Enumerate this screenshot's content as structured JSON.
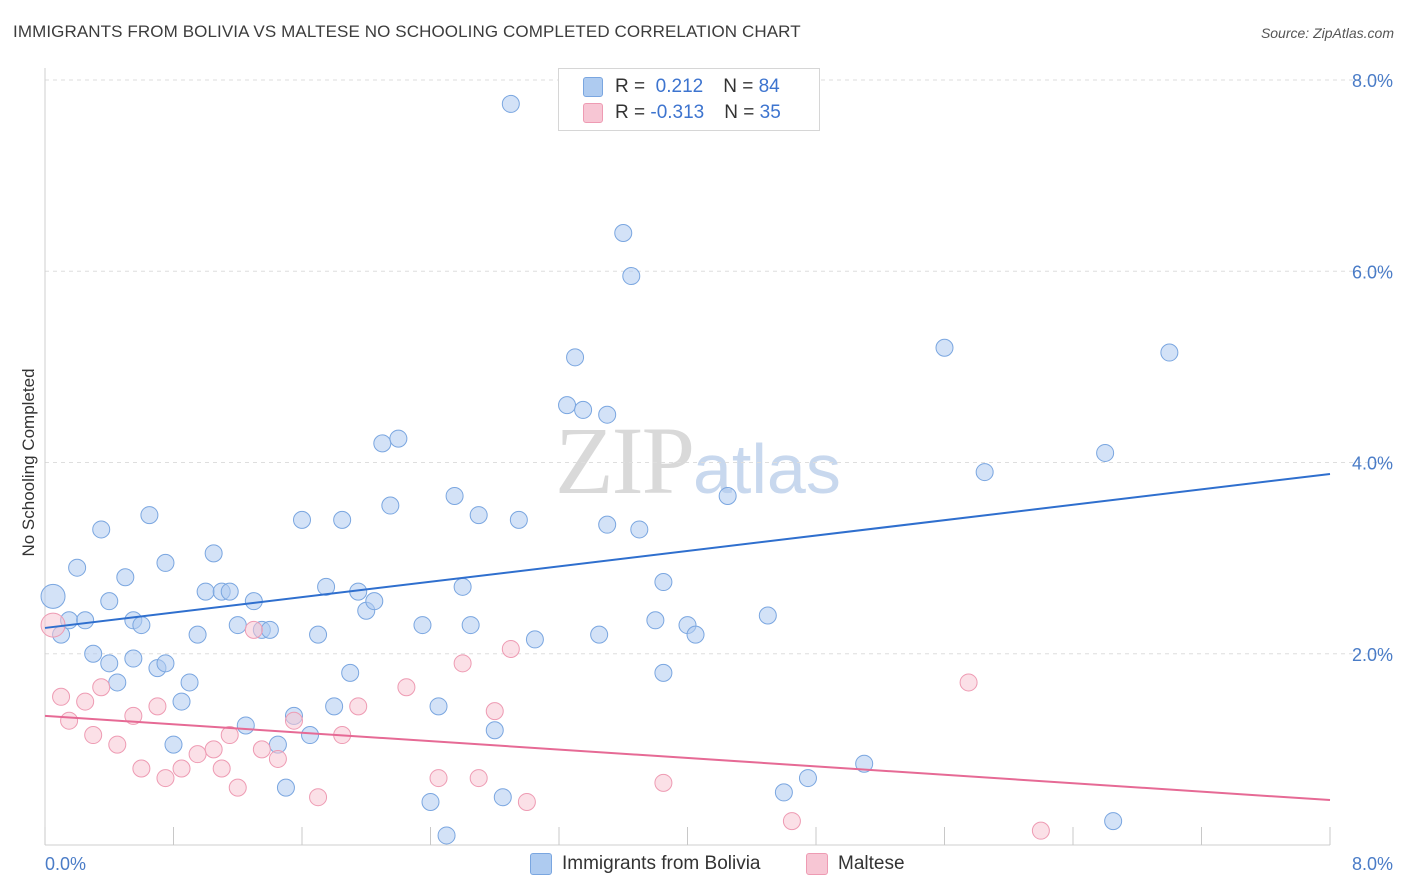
{
  "header": {
    "title": "IMMIGRANTS FROM BOLIVIA VS MALTESE NO SCHOOLING COMPLETED CORRELATION CHART",
    "source": "Source: ZipAtlas.com"
  },
  "watermark": {
    "zip": "ZIP",
    "atlas": "atlas"
  },
  "legend": {
    "rows": [
      {
        "r_label": "R = ",
        "r_value": " 0.212",
        "n_label": "N = ",
        "n_value": "84",
        "color": "#aecbf0",
        "stroke": "#7aa6e0"
      },
      {
        "r_label": "R = ",
        "r_value": "-0.313",
        "n_label": "N = ",
        "n_value": "35",
        "color": "#f7c6d4",
        "stroke": "#ee9bb3"
      }
    ]
  },
  "bottom_legend": [
    {
      "label": "Immigrants from Bolivia",
      "color": "#aecbf0",
      "stroke": "#7aa6e0"
    },
    {
      "label": "Maltese",
      "color": "#f7c6d4",
      "stroke": "#ee9bb3"
    }
  ],
  "chart_data": {
    "type": "scatter",
    "title": "IMMIGRANTS FROM BOLIVIA VS MALTESE NO SCHOOLING COMPLETED CORRELATION CHART",
    "xlabel": "",
    "ylabel": "No Schooling Completed",
    "xlim": [
      0,
      8
    ],
    "ylim": [
      0,
      8
    ],
    "x_tick_labels": [
      "0.0%",
      "8.0%"
    ],
    "y_ticks": [
      2,
      4,
      6,
      8
    ],
    "y_tick_labels": [
      "2.0%",
      "4.0%",
      "6.0%",
      "8.0%"
    ],
    "grid": true,
    "legend_position": "top-center",
    "series": [
      {
        "name": "Immigrants from Bolivia",
        "color": "#aecbf0",
        "stroke": "#7aa6e0",
        "trend": {
          "x": [
            0,
            8
          ],
          "y": [
            2.27,
            3.88
          ],
          "color": "#2f6fce"
        },
        "points": [
          [
            0.05,
            2.6
          ],
          [
            0.1,
            2.2
          ],
          [
            0.15,
            2.35
          ],
          [
            0.2,
            2.9
          ],
          [
            0.25,
            2.35
          ],
          [
            0.3,
            2.0
          ],
          [
            0.35,
            3.3
          ],
          [
            0.4,
            2.55
          ],
          [
            0.4,
            1.9
          ],
          [
            0.45,
            1.7
          ],
          [
            0.5,
            2.8
          ],
          [
            0.55,
            2.35
          ],
          [
            0.55,
            1.95
          ],
          [
            0.6,
            2.3
          ],
          [
            0.65,
            3.45
          ],
          [
            0.7,
            1.85
          ],
          [
            0.75,
            2.95
          ],
          [
            0.75,
            1.9
          ],
          [
            0.8,
            1.05
          ],
          [
            0.85,
            1.5
          ],
          [
            0.9,
            1.7
          ],
          [
            0.95,
            2.2
          ],
          [
            1.0,
            2.65
          ],
          [
            1.05,
            3.05
          ],
          [
            1.1,
            2.65
          ],
          [
            1.15,
            2.65
          ],
          [
            1.2,
            2.3
          ],
          [
            1.25,
            1.25
          ],
          [
            1.3,
            2.55
          ],
          [
            1.35,
            2.25
          ],
          [
            1.4,
            2.25
          ],
          [
            1.45,
            1.05
          ],
          [
            1.5,
            0.6
          ],
          [
            1.55,
            1.35
          ],
          [
            1.6,
            3.4
          ],
          [
            1.65,
            1.15
          ],
          [
            1.7,
            2.2
          ],
          [
            1.75,
            2.7
          ],
          [
            1.8,
            1.45
          ],
          [
            1.85,
            3.4
          ],
          [
            1.9,
            1.8
          ],
          [
            1.95,
            2.65
          ],
          [
            2.0,
            2.45
          ],
          [
            2.05,
            2.55
          ],
          [
            2.1,
            4.2
          ],
          [
            2.15,
            3.55
          ],
          [
            2.2,
            4.25
          ],
          [
            2.35,
            2.3
          ],
          [
            2.4,
            0.45
          ],
          [
            2.45,
            1.45
          ],
          [
            2.5,
            0.1
          ],
          [
            2.55,
            3.65
          ],
          [
            2.6,
            2.7
          ],
          [
            2.65,
            2.3
          ],
          [
            2.7,
            3.45
          ],
          [
            2.8,
            1.2
          ],
          [
            2.85,
            0.5
          ],
          [
            2.9,
            7.75
          ],
          [
            2.95,
            3.4
          ],
          [
            3.05,
            2.15
          ],
          [
            3.25,
            4.6
          ],
          [
            3.3,
            5.1
          ],
          [
            3.35,
            4.55
          ],
          [
            3.45,
            2.2
          ],
          [
            3.5,
            4.5
          ],
          [
            3.5,
            3.35
          ],
          [
            3.6,
            6.4
          ],
          [
            3.65,
            5.95
          ],
          [
            3.7,
            3.3
          ],
          [
            3.8,
            2.35
          ],
          [
            3.85,
            2.75
          ],
          [
            3.85,
            1.8
          ],
          [
            4.0,
            2.3
          ],
          [
            4.05,
            2.2
          ],
          [
            4.25,
            3.65
          ],
          [
            4.5,
            2.4
          ],
          [
            4.6,
            0.55
          ],
          [
            4.75,
            0.7
          ],
          [
            5.1,
            0.85
          ],
          [
            5.6,
            5.2
          ],
          [
            5.85,
            3.9
          ],
          [
            6.6,
            4.1
          ],
          [
            6.65,
            0.25
          ],
          [
            7.0,
            5.15
          ]
        ]
      },
      {
        "name": "Maltese",
        "color": "#f7c6d4",
        "stroke": "#ee9bb3",
        "trend": {
          "x": [
            0,
            8
          ],
          "y": [
            1.35,
            0.47
          ],
          "color": "#e66a95"
        },
        "points": [
          [
            0.05,
            2.3
          ],
          [
            0.1,
            1.55
          ],
          [
            0.15,
            1.3
          ],
          [
            0.25,
            1.5
          ],
          [
            0.3,
            1.15
          ],
          [
            0.35,
            1.65
          ],
          [
            0.45,
            1.05
          ],
          [
            0.55,
            1.35
          ],
          [
            0.6,
            0.8
          ],
          [
            0.7,
            1.45
          ],
          [
            0.75,
            0.7
          ],
          [
            0.85,
            0.8
          ],
          [
            0.95,
            0.95
          ],
          [
            1.05,
            1.0
          ],
          [
            1.1,
            0.8
          ],
          [
            1.15,
            1.15
          ],
          [
            1.2,
            0.6
          ],
          [
            1.3,
            2.25
          ],
          [
            1.35,
            1.0
          ],
          [
            1.45,
            0.9
          ],
          [
            1.55,
            1.3
          ],
          [
            1.7,
            0.5
          ],
          [
            1.85,
            1.15
          ],
          [
            1.95,
            1.45
          ],
          [
            2.25,
            1.65
          ],
          [
            2.45,
            0.7
          ],
          [
            2.6,
            1.9
          ],
          [
            2.7,
            0.7
          ],
          [
            2.8,
            1.4
          ],
          [
            2.9,
            2.05
          ],
          [
            3.0,
            0.45
          ],
          [
            3.85,
            0.65
          ],
          [
            4.65,
            0.25
          ],
          [
            5.75,
            1.7
          ],
          [
            6.2,
            0.15
          ]
        ]
      }
    ]
  }
}
